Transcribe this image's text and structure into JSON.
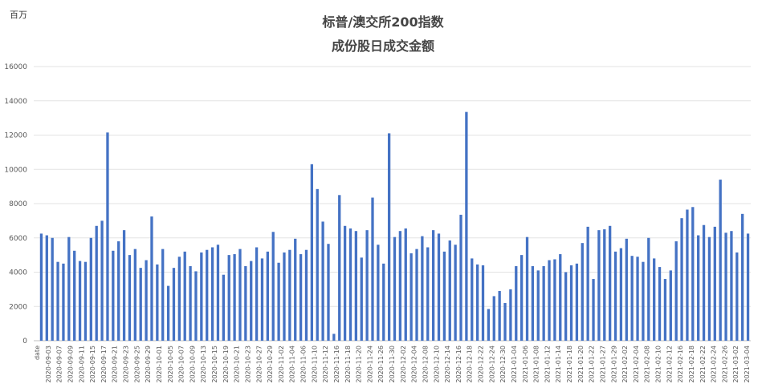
{
  "unit_label": "百万",
  "chart_data": {
    "type": "bar",
    "title": "标普/澳交所200指数",
    "subtitle": "成份股日成交金额",
    "ylim": [
      0,
      16000
    ],
    "yticks": [
      0,
      2000,
      4000,
      6000,
      8000,
      10000,
      12000,
      14000,
      16000
    ],
    "grid": true,
    "bar_color": "#4472C4",
    "x_tick_labels": [
      "date",
      "2020-09-03",
      "2020-09-07",
      "2020-09-09",
      "2020-09-11",
      "2020-09-15",
      "2020-09-17",
      "2020-09-21",
      "2020-09-23",
      "2020-09-25",
      "2020-09-29",
      "2020-10-01",
      "2020-10-05",
      "2020-10-07",
      "2020-10-09",
      "2020-10-13",
      "2020-10-15",
      "2020-10-19",
      "2020-10-21",
      "2020-10-23",
      "2020-10-27",
      "2020-10-29",
      "2020-11-02",
      "2020-11-04",
      "2020-11-06",
      "2020-11-10",
      "2020-11-12",
      "2020-11-16",
      "2020-11-18",
      "2020-11-20",
      "2020-11-24",
      "2020-11-26",
      "2020-11-30",
      "2020-12-02",
      "2020-12-04",
      "2020-12-08",
      "2020-12-10",
      "2020-12-14",
      "2020-12-16",
      "2020-12-18",
      "2020-12-22",
      "2020-12-24",
      "2020-12-30",
      "2021-01-04",
      "2021-01-06",
      "2021-01-08",
      "2021-01-12",
      "2021-01-14",
      "2021-01-18",
      "2021-01-20",
      "2021-01-22",
      "2021-01-27",
      "2021-01-29",
      "2021-02-02",
      "2021-02-04",
      "2021-02-08",
      "2021-02-10",
      "2021-02-12",
      "2021-02-16",
      "2021-02-18",
      "2021-02-22",
      "2021-02-24",
      "2021-02-26",
      "2021-03-02",
      "2021-03-04"
    ],
    "values": [
      6250,
      6150,
      6000,
      4600,
      4500,
      6050,
      5250,
      4650,
      4600,
      6000,
      6700,
      7000,
      12150,
      5250,
      5800,
      6450,
      5000,
      5350,
      4250,
      4700,
      7250,
      4450,
      5350,
      3200,
      4250,
      4900,
      5200,
      4350,
      4050,
      5150,
      5300,
      5450,
      5600,
      3850,
      5000,
      5050,
      5350,
      4350,
      4650,
      5450,
      4800,
      5200,
      6350,
      4550,
      5150,
      5300,
      5950,
      5050,
      5300,
      10300,
      8850,
      6950,
      5650,
      400,
      8500,
      6700,
      6550,
      6400,
      4850,
      6450,
      8350,
      5600,
      4500,
      12100,
      6050,
      6400,
      6550,
      5100,
      5350,
      6100,
      5450,
      6450,
      6250,
      5200,
      5850,
      5600,
      7350,
      13350,
      4800,
      4450,
      4400,
      1850,
      2600,
      2900,
      2200,
      3000,
      4350,
      5000,
      6050,
      4350,
      4100,
      4350,
      4700,
      4750,
      5050,
      4000,
      4400,
      4500,
      5700,
      6650,
      3600,
      6450,
      6500,
      6700,
      5200,
      5400,
      5950,
      4950,
      4900,
      4600,
      6000,
      4800,
      4300,
      3600,
      4100,
      5800,
      7150,
      7650,
      7800,
      6150,
      6750,
      6050,
      6650,
      9400,
      6300,
      6400,
      5150,
      7400,
      6250
    ]
  }
}
